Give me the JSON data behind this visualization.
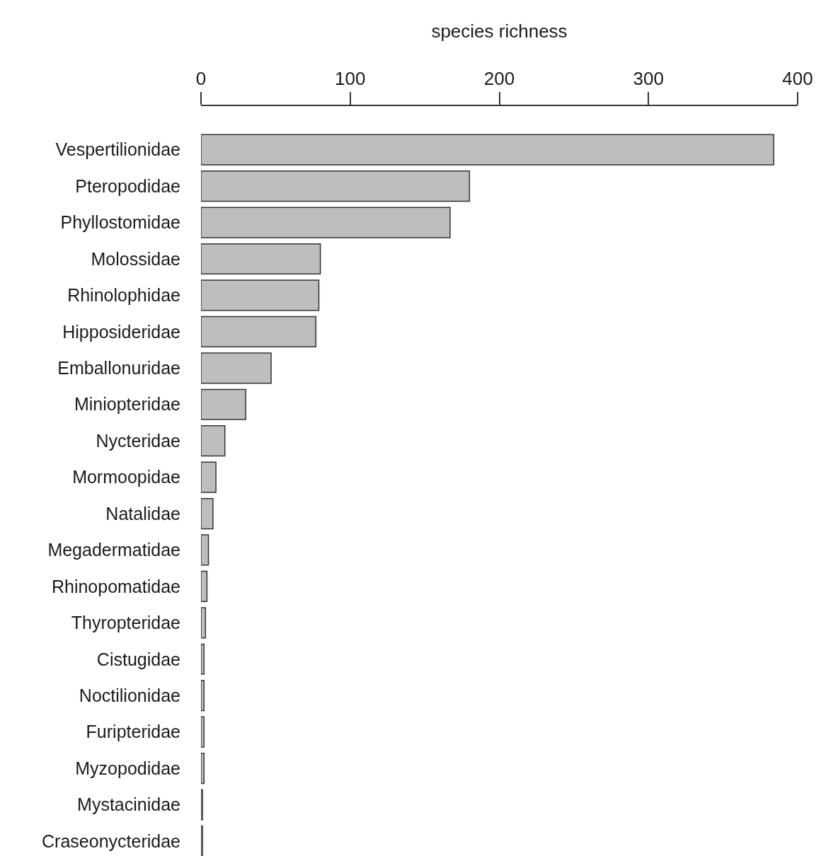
{
  "chart_data": {
    "type": "bar",
    "orientation": "horizontal",
    "xlabel": "species richness",
    "categories": [
      "Vespertilionidae",
      "Pteropodidae",
      "Phyllostomidae",
      "Molossidae",
      "Rhinolophidae",
      "Hipposideridae",
      "Emballonuridae",
      "Miniopteridae",
      "Nycteridae",
      "Mormoopidae",
      "Natalidae",
      "Megadermatidae",
      "Rhinopomatidae",
      "Thyropteridae",
      "Cistugidae",
      "Noctilionidae",
      "Furipteridae",
      "Myzopodidae",
      "Mystacinidae",
      "Craseonycteridae"
    ],
    "values": [
      384,
      180,
      167,
      80,
      79,
      77,
      47,
      30,
      16,
      10,
      8,
      5,
      4,
      3,
      2,
      2,
      2,
      2,
      1,
      1
    ],
    "color": "#bebebe",
    "xlim": [
      0,
      400
    ],
    "xticks": [
      0,
      100,
      200,
      300,
      400
    ]
  }
}
